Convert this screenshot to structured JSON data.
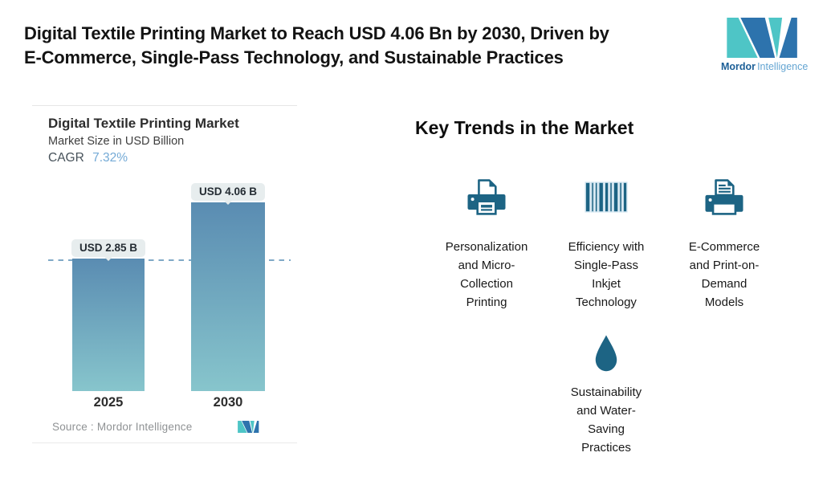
{
  "header": {
    "title_line1": "Digital Textile Printing Market to Reach USD 4.06 Bn by 2030, Driven by",
    "title_line2": "E-Commerce, Single-Pass Technology, and Sustainable Practices",
    "logo": {
      "text_bold": "Mordor",
      "text_light": "Intelligence"
    }
  },
  "chart_card": {
    "title": "Digital Textile Printing Market",
    "subtitle": "Market Size in USD Billion",
    "cagr_label": "CAGR",
    "cagr_value": "7.32%",
    "source_label": "Source :",
    "source_value": "Mordor Intelligence"
  },
  "chart_data": {
    "type": "bar",
    "title": "Digital Textile Printing Market",
    "subtitle": "Market Size in USD Billion",
    "cagr": "7.32%",
    "categories": [
      "2025",
      "2030"
    ],
    "values": [
      2.85,
      4.06
    ],
    "unit": "USD Billion",
    "data_labels": [
      "USD 2.85 B",
      "USD 4.06 B"
    ],
    "reference_line_value": 2.85,
    "reference_line_style": "dashed",
    "legend": "none",
    "grid": "off",
    "source": "Source : Mordor Intelligence"
  },
  "trends": {
    "heading": "Key Trends in the Market",
    "items": [
      {
        "icon": "printer-icon",
        "label": [
          "Personalization",
          "and Micro-",
          "Collection",
          "Printing"
        ]
      },
      {
        "icon": "barcode-icon",
        "label": [
          "Efficiency with",
          "Single-Pass",
          "Inkjet",
          "Technology"
        ]
      },
      {
        "icon": "printer-document-icon",
        "label": [
          "E-Commerce",
          "and Print-on-",
          "Demand",
          "Models"
        ]
      },
      {
        "icon": "water-drop-icon",
        "label": [
          "Sustainability",
          "and Water-",
          "Saving",
          "Practices"
        ]
      }
    ]
  },
  "colors": {
    "icon": "#1d6484",
    "logo_teal": "#4ec5c6",
    "logo_blue": "#2d73ad",
    "brand_bold": "#1c5f97",
    "brand_light": "#64a5d2",
    "bar_top": "#5a8cb2",
    "bar_bottom": "#87c5cc",
    "dash": "#7fa9c7",
    "badge_bg": "#e7edee",
    "cagr_value": "#74aad6",
    "barcode_outline": "#cde2ee"
  }
}
